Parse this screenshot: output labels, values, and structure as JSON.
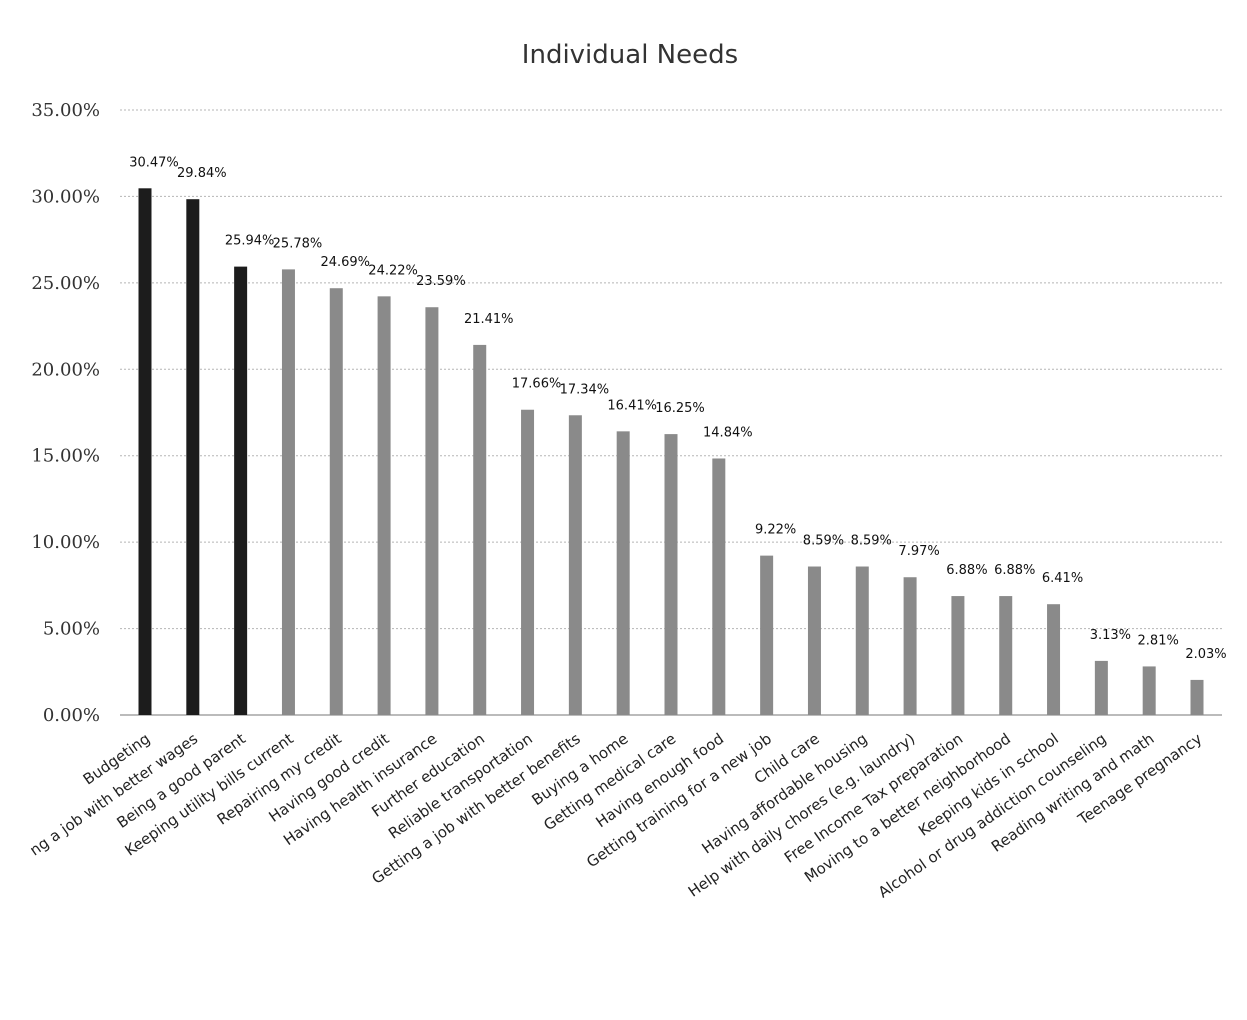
{
  "chart_data": {
    "type": "bar",
    "title": "Individual Needs",
    "xlabel": "",
    "ylabel": "",
    "ylim": [
      0,
      35
    ],
    "y_tick_labels": [
      "0.00%",
      "5.00%",
      "10.00%",
      "15.00%",
      "20.00%",
      "25.00%",
      "30.00%",
      "35.00%"
    ],
    "y_ticks": [
      0,
      5,
      10,
      15,
      20,
      25,
      30,
      35
    ],
    "grid": true,
    "legend": "none",
    "categories": [
      "Budgeting",
      "ng a job with better wages",
      "Being a good parent",
      "Keeping utility bills current",
      "Repairing my credit",
      "Having good credit",
      "Having health insurance",
      "Further education",
      "Reliable transportation",
      "Getting a job with better benefits",
      "Buying a home",
      "Getting medical care",
      "Having enough food",
      "Getting training for a new job",
      "Child care",
      "Having affordable housing",
      "Help with daily chores (e.g. laundry)",
      "Free Income Tax preparation",
      "Moving to a better neighborhood",
      "Keeping kids in school",
      "Alcohol or drug addiction counseling",
      "Reading writing and math",
      "Teenage pregnancy"
    ],
    "values": [
      30.47,
      29.84,
      25.94,
      25.78,
      24.69,
      24.22,
      23.59,
      21.41,
      17.66,
      17.34,
      16.41,
      16.25,
      14.84,
      9.22,
      8.59,
      8.59,
      7.97,
      6.88,
      6.88,
      6.41,
      3.13,
      2.81,
      2.03
    ],
    "value_labels": [
      "30.47%",
      "29.84%",
      "25.94%",
      "25.78%",
      "24.69%",
      "24.22%",
      "23.59%",
      "21.41%",
      "17.66%",
      "17.34%",
      "16.41%",
      "16.25%",
      "14.84%",
      "9.22%",
      "8.59%",
      "8.59%",
      "7.97%",
      "6.88%",
      "6.88%",
      "6.41%",
      "3.13%",
      "2.81%",
      "2.03%"
    ],
    "colors": {
      "highlight": "#1c1c1c",
      "default": "#8a8a8a",
      "grid": "#b5b5b5",
      "axis": "#777777"
    },
    "highlight_count": 3
  }
}
